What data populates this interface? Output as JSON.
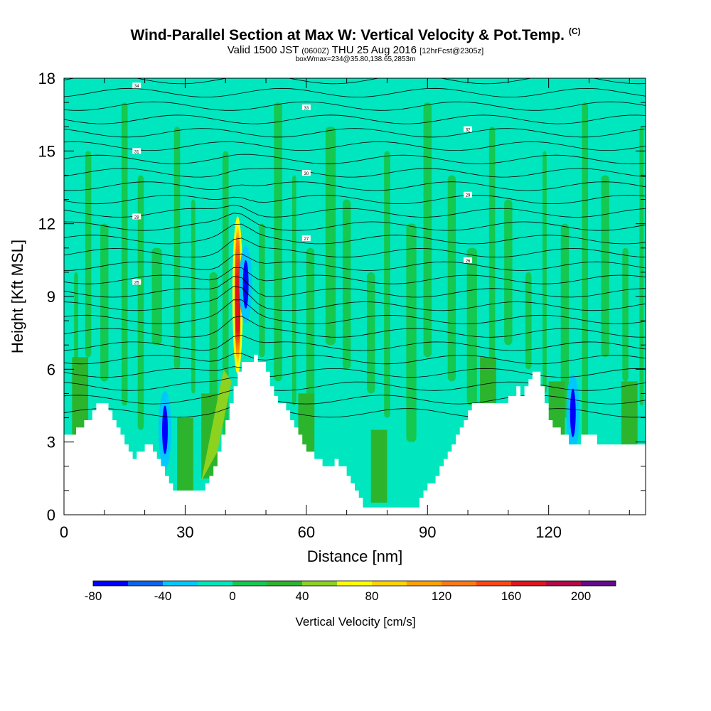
{
  "title": {
    "main": "Wind-Parallel Section at Max W: Vertical Velocity & Pot.Temp.",
    "copyright": "(C)",
    "valid_prefix": "Valid 1500 JST",
    "valid_utc": "(0600Z)",
    "valid_date": "THU 25 Aug 2016",
    "forecast": "[12hrFcst@2305z]",
    "box_info": "boxWmax=234@35.80,138.65,2853m"
  },
  "chart_data": {
    "type": "heatmap",
    "xlabel": "Distance [nm]",
    "ylabel": "Height [Kft MSL]",
    "xlim": [
      0,
      144
    ],
    "ylim": [
      0,
      18
    ],
    "x_ticks": [
      0,
      30,
      60,
      90,
      120
    ],
    "y_ticks": [
      0,
      3,
      6,
      9,
      12,
      15,
      18
    ],
    "colorbar": {
      "label": "Vertical Velocity [cm/s]",
      "min": -80,
      "max": 220,
      "step": 20,
      "tick_values": [
        -80,
        -40,
        0,
        40,
        80,
        120,
        160,
        200
      ],
      "colors": [
        "#0000ff",
        "#0a64f0",
        "#00c8ff",
        "#00e6be",
        "#14c850",
        "#2db42d",
        "#8cd21e",
        "#ffff00",
        "#ffd200",
        "#ffa000",
        "#ff7814",
        "#ff4614",
        "#e1141e",
        "#b40a46",
        "#640a8c"
      ]
    },
    "terrain": [
      [
        0,
        3.3
      ],
      [
        3,
        3.3
      ],
      [
        3,
        3.6
      ],
      [
        5,
        3.6
      ],
      [
        5,
        3.9
      ],
      [
        7,
        3.9
      ],
      [
        7,
        4.3
      ],
      [
        8,
        4.3
      ],
      [
        8,
        4.6
      ],
      [
        11,
        4.6
      ],
      [
        11,
        4.3
      ],
      [
        12,
        4.3
      ],
      [
        12,
        3.9
      ],
      [
        13,
        3.9
      ],
      [
        13,
        3.6
      ],
      [
        14,
        3.6
      ],
      [
        14,
        3.3
      ],
      [
        15,
        3.3
      ],
      [
        15,
        2.9
      ],
      [
        16,
        2.9
      ],
      [
        16,
        2.6
      ],
      [
        17,
        2.6
      ],
      [
        17,
        2.3
      ],
      [
        18,
        2.3
      ],
      [
        18,
        2.6
      ],
      [
        20,
        2.6
      ],
      [
        20,
        2.9
      ],
      [
        22,
        2.9
      ],
      [
        22,
        2.6
      ],
      [
        23,
        2.6
      ],
      [
        23,
        2.3
      ],
      [
        24,
        2.3
      ],
      [
        24,
        2.0
      ],
      [
        25,
        2.0
      ],
      [
        25,
        1.6
      ],
      [
        26,
        1.6
      ],
      [
        26,
        1.3
      ],
      [
        27,
        1.3
      ],
      [
        27,
        1.0
      ],
      [
        35,
        1.0
      ],
      [
        35,
        1.3
      ],
      [
        36,
        1.3
      ],
      [
        36,
        1.6
      ],
      [
        37,
        1.6
      ],
      [
        37,
        2.0
      ],
      [
        38,
        2.0
      ],
      [
        38,
        2.6
      ],
      [
        39,
        2.6
      ],
      [
        39,
        3.3
      ],
      [
        40,
        3.3
      ],
      [
        40,
        3.9
      ],
      [
        41,
        3.9
      ],
      [
        41,
        4.6
      ],
      [
        42,
        4.6
      ],
      [
        42,
        5.3
      ],
      [
        43,
        5.3
      ],
      [
        43,
        5.9
      ],
      [
        44,
        5.9
      ],
      [
        44,
        6.3
      ],
      [
        47,
        6.3
      ],
      [
        47,
        6.6
      ],
      [
        48,
        6.6
      ],
      [
        48,
        6.3
      ],
      [
        50,
        6.3
      ],
      [
        50,
        5.9
      ],
      [
        51,
        5.9
      ],
      [
        51,
        5.3
      ],
      [
        52,
        5.3
      ],
      [
        52,
        4.9
      ],
      [
        53,
        4.9
      ],
      [
        53,
        4.6
      ],
      [
        55,
        4.6
      ],
      [
        55,
        4.3
      ],
      [
        56,
        4.3
      ],
      [
        56,
        3.9
      ],
      [
        57,
        3.9
      ],
      [
        57,
        3.6
      ],
      [
        58,
        3.6
      ],
      [
        58,
        3.3
      ],
      [
        59,
        3.3
      ],
      [
        59,
        2.9
      ],
      [
        60,
        2.9
      ],
      [
        60,
        2.6
      ],
      [
        62,
        2.6
      ],
      [
        62,
        2.3
      ],
      [
        64,
        2.3
      ],
      [
        64,
        2.0
      ],
      [
        67,
        2.0
      ],
      [
        67,
        2.3
      ],
      [
        68,
        2.3
      ],
      [
        68,
        2.0
      ],
      [
        70,
        2.0
      ],
      [
        70,
        1.6
      ],
      [
        71,
        1.6
      ],
      [
        71,
        1.3
      ],
      [
        72,
        1.3
      ],
      [
        72,
        1.0
      ],
      [
        73,
        1.0
      ],
      [
        73,
        0.7
      ],
      [
        74,
        0.7
      ],
      [
        74,
        0.3
      ],
      [
        88,
        0.3
      ],
      [
        88,
        0.7
      ],
      [
        89,
        0.7
      ],
      [
        89,
        1.0
      ],
      [
        90,
        1.0
      ],
      [
        90,
        1.3
      ],
      [
        92,
        1.3
      ],
      [
        92,
        1.6
      ],
      [
        93,
        1.6
      ],
      [
        93,
        2.0
      ],
      [
        94,
        2.0
      ],
      [
        94,
        2.3
      ],
      [
        95,
        2.3
      ],
      [
        95,
        2.6
      ],
      [
        96,
        2.6
      ],
      [
        96,
        2.9
      ],
      [
        97,
        2.9
      ],
      [
        97,
        3.3
      ],
      [
        98,
        3.3
      ],
      [
        98,
        3.6
      ],
      [
        99,
        3.6
      ],
      [
        99,
        3.9
      ],
      [
        100,
        3.9
      ],
      [
        100,
        4.3
      ],
      [
        101,
        4.3
      ],
      [
        101,
        4.6
      ],
      [
        110,
        4.6
      ],
      [
        110,
        4.9
      ],
      [
        112,
        4.9
      ],
      [
        112,
        5.3
      ],
      [
        113,
        5.3
      ],
      [
        113,
        4.9
      ],
      [
        114,
        4.9
      ],
      [
        114,
        5.3
      ],
      [
        115,
        5.3
      ],
      [
        115,
        5.6
      ],
      [
        116,
        5.6
      ],
      [
        116,
        5.9
      ],
      [
        118,
        5.9
      ],
      [
        118,
        5.3
      ],
      [
        119,
        5.3
      ],
      [
        119,
        4.6
      ],
      [
        120,
        4.6
      ],
      [
        120,
        3.9
      ],
      [
        121,
        3.9
      ],
      [
        121,
        3.6
      ],
      [
        123,
        3.6
      ],
      [
        123,
        3.3
      ],
      [
        125,
        3.3
      ],
      [
        125,
        2.9
      ],
      [
        128,
        2.9
      ],
      [
        128,
        3.3
      ],
      [
        132,
        3.3
      ],
      [
        132,
        2.9
      ],
      [
        144,
        2.9
      ]
    ],
    "updraft_core": {
      "x": 43,
      "y_bottom": 5.8,
      "y_top": 12.3,
      "max_value": 234
    },
    "downdraft_cells": [
      {
        "x": 45,
        "y": 9.5,
        "value": -80
      },
      {
        "x": 25,
        "y": 3.5,
        "value": -80
      },
      {
        "x": 126,
        "y": 4.2,
        "value": -80
      }
    ],
    "isentrope_labels": [
      "34",
      "33",
      "32",
      "31",
      "30",
      "29",
      "28",
      "27",
      "26",
      "25"
    ]
  }
}
